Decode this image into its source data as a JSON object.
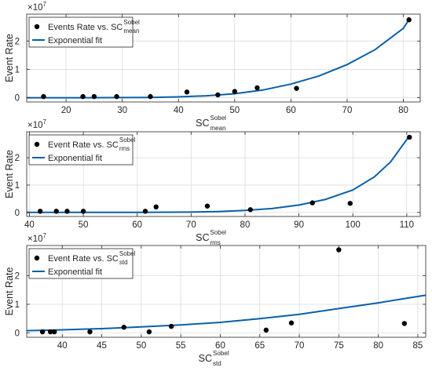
{
  "colors": {
    "fit": "#0a60a8",
    "points": "#000000",
    "grid": "#dcdcdc",
    "axis": "#262626"
  },
  "chart_data": [
    {
      "type": "scatter",
      "exponent_label": "×10",
      "exponent_power": "7",
      "ylabel": "Event Rate",
      "xlabel_main": "SC",
      "xlabel_sup": "Sobel",
      "xlabel_sub": "mean",
      "xlim": [
        13,
        83
      ],
      "ylim": [
        -0.15,
        2.95
      ],
      "xticks": [
        20,
        30,
        40,
        50,
        60,
        70,
        80
      ],
      "yticks": [
        0,
        1,
        2
      ],
      "grid": true,
      "legend_position": "top-left",
      "legend": {
        "points_main": "Events Rate vs. SC",
        "points_sup": "Sobel",
        "points_sub": "mean",
        "fit": "Exponential fit"
      },
      "points": {
        "x": [
          16,
          23,
          25,
          29,
          35,
          41.5,
          47,
          50,
          54,
          61,
          81
        ],
        "y": [
          0.04,
          0.04,
          0.04,
          0.04,
          0.04,
          0.2,
          0.1,
          0.22,
          0.35,
          0.33,
          2.75
        ]
      },
      "fit": {
        "x": [
          13,
          25,
          35,
          40,
          45,
          50,
          55,
          60,
          65,
          70,
          75,
          80,
          81
        ],
        "y": [
          0.0,
          0.0,
          0.01,
          0.03,
          0.07,
          0.14,
          0.27,
          0.48,
          0.77,
          1.17,
          1.7,
          2.45,
          2.75
        ]
      }
    },
    {
      "type": "scatter",
      "exponent_label": "×10",
      "exponent_power": "7",
      "ylabel": "Event Rate",
      "xlabel_main": "SC",
      "xlabel_sup": "Sobel",
      "xlabel_sub": "rms",
      "xlim": [
        39.5,
        112.5
      ],
      "ylim": [
        -0.15,
        2.95
      ],
      "xticks": [
        40,
        50,
        60,
        70,
        80,
        90,
        100,
        110
      ],
      "yticks": [
        0,
        1,
        2
      ],
      "grid": true,
      "legend_position": "top-left",
      "legend": {
        "points_main": "Event Rate vs. SC",
        "points_sup": "Sobel",
        "points_sub": "rms",
        "fit": "Exponential fit"
      },
      "points": {
        "x": [
          42,
          45,
          47,
          50,
          61.5,
          63.5,
          73,
          81,
          92.5,
          99.5,
          110.5
        ],
        "y": [
          0.04,
          0.04,
          0.04,
          0.04,
          0.04,
          0.2,
          0.23,
          0.1,
          0.35,
          0.33,
          2.75
        ]
      },
      "fit": {
        "x": [
          39.5,
          60,
          70,
          75,
          80,
          85,
          90,
          95,
          100,
          104,
          107,
          110.5
        ],
        "y": [
          0.0,
          0.0,
          0.01,
          0.03,
          0.07,
          0.14,
          0.27,
          0.48,
          0.82,
          1.3,
          1.85,
          2.8
        ]
      }
    },
    {
      "type": "scatter",
      "exponent_label": "×10",
      "exponent_power": "7",
      "ylabel": "Event Rate",
      "xlabel_main": "SC",
      "xlabel_sup": "Sobel",
      "xlabel_sub": "std",
      "xlim": [
        35.5,
        86
      ],
      "ylim": [
        -0.15,
        3.05
      ],
      "xticks": [
        40,
        45,
        50,
        55,
        60,
        65,
        70,
        75,
        80,
        85
      ],
      "yticks": [
        0,
        1,
        2
      ],
      "grid": true,
      "legend_position": "top-left",
      "legend": {
        "points_main": "Event Rate vs. SC",
        "points_sup": "Sobel",
        "points_sub": "std",
        "fit": "Exponential fit"
      },
      "points": {
        "x": [
          37.5,
          38.5,
          39,
          43.5,
          47.8,
          51,
          53.8,
          65.8,
          69,
          75,
          83.3
        ],
        "y": [
          0.04,
          0.04,
          0.04,
          0.04,
          0.2,
          0.04,
          0.23,
          0.1,
          0.35,
          2.9,
          0.33
        ]
      },
      "fit": {
        "x": [
          35.5,
          40,
          45,
          50,
          55,
          60,
          65,
          70,
          75,
          80,
          86
        ],
        "y": [
          0.08,
          0.11,
          0.15,
          0.21,
          0.28,
          0.37,
          0.5,
          0.65,
          0.85,
          1.05,
          1.32
        ]
      }
    }
  ]
}
